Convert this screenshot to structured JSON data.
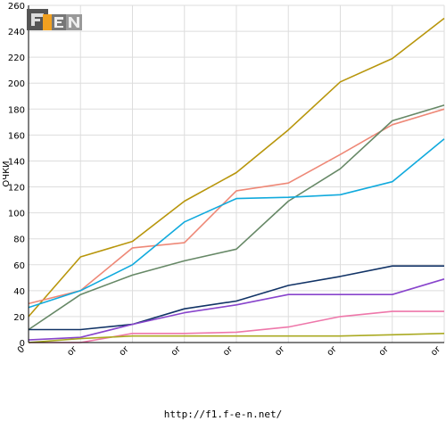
{
  "logo": {
    "text": "F1EN",
    "colors": {
      "dark": "#555555",
      "accent": "#f0a020",
      "light": "#cccccc"
    }
  },
  "footer": {
    "url": "http://f1.f-e-n.net/"
  },
  "chart_data": {
    "type": "line",
    "ylabel": "ОЧКИ",
    "ylim": [
      0,
      260
    ],
    "ytick_step": 20,
    "grid": true,
    "categories": [
      "0",
      "or",
      "or",
      "or",
      "or",
      "or",
      "or",
      "or",
      "or"
    ],
    "series": [
      {
        "color": "#b8960c",
        "values": [
          20,
          66,
          78,
          109,
          131,
          164,
          201,
          219,
          250
        ]
      },
      {
        "color": "#ee8877",
        "values": [
          30,
          40,
          73,
          77,
          117,
          123,
          145,
          168,
          180
        ]
      },
      {
        "color": "#668866",
        "values": [
          10,
          37,
          52,
          63,
          72,
          109,
          134,
          171,
          183
        ]
      },
      {
        "color": "#11aadd",
        "values": [
          27,
          40,
          60,
          93,
          111,
          112,
          114,
          124,
          157
        ]
      },
      {
        "color": "#113366",
        "values": [
          10,
          10,
          14,
          26,
          32,
          44,
          51,
          59,
          59
        ]
      },
      {
        "color": "#8844cc",
        "values": [
          2,
          4,
          14,
          23,
          29,
          37,
          37,
          37,
          49
        ]
      },
      {
        "color": "#ee77aa",
        "values": [
          0,
          0,
          7,
          7,
          8,
          12,
          20,
          24,
          24
        ]
      },
      {
        "color": "#aaaa22",
        "values": [
          0,
          3,
          5,
          5,
          5,
          5,
          5,
          6,
          7
        ]
      }
    ]
  }
}
